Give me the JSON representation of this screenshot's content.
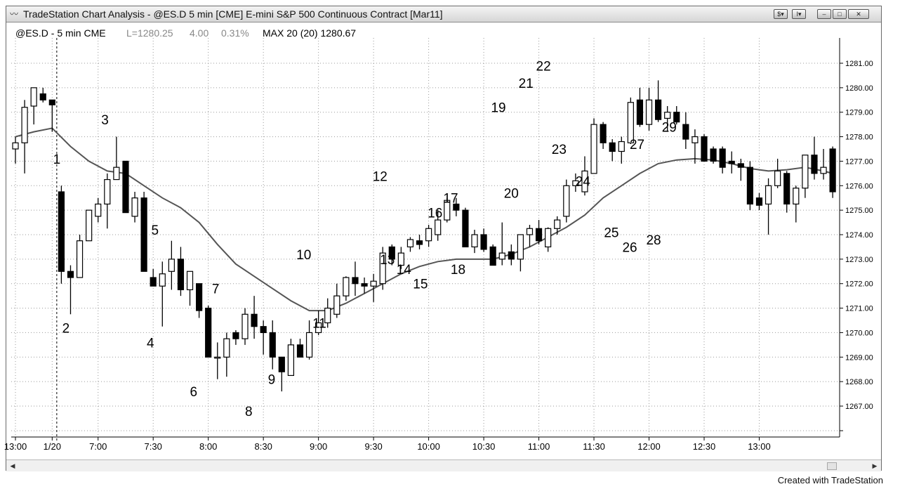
{
  "window": {
    "title": "TradeStation Chart Analysis - @ES.D 5 min [CME] E-mini S&P 500 Continuous Contract [Mar11]",
    "buttons": [
      "$▾",
      "I▾",
      "–",
      "□",
      "✕"
    ]
  },
  "header": {
    "symbol": "@ES.D - 5 min CME",
    "last": "L=1280.25",
    "change": "4.00",
    "change_pct": "0.31%",
    "indicator": "MAX 20 (20) 1280.67"
  },
  "credit": "Created with TradeStation",
  "colors": {
    "bull_fill": "#ffffff",
    "bear_fill": "#000000",
    "ma_line": "#555555",
    "grid": "#9a9a9a"
  },
  "chart_data": {
    "type": "candlestick",
    "title": "@ES.D - 5 min CME",
    "ylim": [
      1266,
      1282.2
    ],
    "y_ticks": [
      "1281.00",
      "1280.00",
      "1279.00",
      "1278.00",
      "1277.00",
      "1276.00",
      "1275.00",
      "1274.00",
      "1273.00",
      "1272.00",
      "1271.00",
      "1270.00",
      "1269.00",
      "1268.00",
      "1267.00"
    ],
    "x_ticks": [
      {
        "label": "13:00",
        "bar": 0
      },
      {
        "label": "1/20",
        "bar": 4
      },
      {
        "label": "7:00",
        "bar": 9
      },
      {
        "label": "7:30",
        "bar": 15
      },
      {
        "label": "8:00",
        "bar": 21
      },
      {
        "label": "8:30",
        "bar": 27
      },
      {
        "label": "9:00",
        "bar": 33
      },
      {
        "label": "9:30",
        "bar": 39
      },
      {
        "label": "10:00",
        "bar": 45
      },
      {
        "label": "10:30",
        "bar": 51
      },
      {
        "label": "11:00",
        "bar": 57
      },
      {
        "label": "11:30",
        "bar": 63
      },
      {
        "label": "12:00",
        "bar": 69
      },
      {
        "label": "12:30",
        "bar": 75
      },
      {
        "label": "13:00",
        "bar": 81
      }
    ],
    "session_break_bar": 4.5,
    "ohlc": [
      [
        1277.5,
        1278.0,
        1276.9,
        1277.75
      ],
      [
        1277.75,
        1279.5,
        1276.5,
        1279.2
      ],
      [
        1279.25,
        1280.0,
        1278.5,
        1280.0
      ],
      [
        1279.75,
        1280.0,
        1279.4,
        1279.5
      ],
      [
        1279.5,
        1279.5,
        1278.2,
        1279.3
      ],
      [
        1275.75,
        1276.0,
        1272.0,
        1272.5
      ],
      [
        1272.5,
        1272.75,
        1270.75,
        1272.25
      ],
      [
        1272.25,
        1274.0,
        1272.25,
        1273.75
      ],
      [
        1273.75,
        1275.0,
        1273.75,
        1275.0
      ],
      [
        1274.75,
        1275.5,
        1274.5,
        1275.25
      ],
      [
        1275.25,
        1276.5,
        1274.25,
        1276.25
      ],
      [
        1276.25,
        1278.0,
        1276.25,
        1276.75
      ],
      [
        1277.0,
        1277.0,
        1275.0,
        1274.9
      ],
      [
        1274.75,
        1275.75,
        1274.5,
        1275.5
      ],
      [
        1275.5,
        1275.75,
        1272.5,
        1272.5
      ],
      [
        1272.25,
        1272.6,
        1272.0,
        1271.9
      ],
      [
        1271.9,
        1272.9,
        1270.25,
        1272.4
      ],
      [
        1272.5,
        1273.75,
        1271.75,
        1273.0
      ],
      [
        1273.0,
        1273.5,
        1271.5,
        1271.75
      ],
      [
        1271.75,
        1272.5,
        1271.1,
        1272.5
      ],
      [
        1272.0,
        1272.0,
        1270.6,
        1270.9
      ],
      [
        1271.0,
        1271.1,
        1269.0,
        1269.0
      ],
      [
        1269.0,
        1269.6,
        1268.1,
        1269.0
      ],
      [
        1269.0,
        1270.0,
        1268.2,
        1269.75
      ],
      [
        1270.0,
        1270.1,
        1269.5,
        1269.75
      ],
      [
        1269.75,
        1271.0,
        1269.5,
        1270.75
      ],
      [
        1270.75,
        1271.5,
        1269.75,
        1270.25
      ],
      [
        1270.25,
        1270.5,
        1269.1,
        1270.0
      ],
      [
        1270.0,
        1270.5,
        1268.5,
        1269.0
      ],
      [
        1269.0,
        1269.0,
        1267.6,
        1268.4
      ],
      [
        1268.25,
        1269.75,
        1268.25,
        1269.5
      ],
      [
        1269.5,
        1269.75,
        1269.0,
        1269.0
      ],
      [
        1269.0,
        1270.5,
        1268.9,
        1270.0
      ],
      [
        1270.0,
        1270.9,
        1269.9,
        1270.4
      ],
      [
        1270.4,
        1271.4,
        1270.2,
        1271.0
      ],
      [
        1270.75,
        1272.0,
        1270.6,
        1271.5
      ],
      [
        1271.5,
        1272.3,
        1271.3,
        1272.25
      ],
      [
        1272.25,
        1272.9,
        1271.5,
        1272.0
      ],
      [
        1272.0,
        1272.25,
        1271.6,
        1271.9
      ],
      [
        1271.9,
        1272.4,
        1271.25,
        1272.1
      ],
      [
        1272.0,
        1273.5,
        1271.75,
        1273.25
      ],
      [
        1273.5,
        1273.6,
        1272.75,
        1273.0
      ],
      [
        1272.75,
        1273.5,
        1272.6,
        1273.25
      ],
      [
        1273.5,
        1273.9,
        1273.3,
        1273.8
      ],
      [
        1273.75,
        1274.0,
        1273.4,
        1273.6
      ],
      [
        1273.75,
        1274.4,
        1273.5,
        1274.25
      ],
      [
        1274.0,
        1275.0,
        1273.75,
        1274.6
      ],
      [
        1274.6,
        1275.5,
        1274.5,
        1275.4
      ],
      [
        1275.25,
        1275.5,
        1274.75,
        1275.0
      ],
      [
        1275.0,
        1275.1,
        1273.6,
        1273.5
      ],
      [
        1273.5,
        1274.2,
        1273.25,
        1274.0
      ],
      [
        1274.0,
        1274.25,
        1273.3,
        1273.4
      ],
      [
        1273.5,
        1273.6,
        1272.9,
        1272.75
      ],
      [
        1273.0,
        1274.5,
        1272.75,
        1273.25
      ],
      [
        1273.3,
        1273.6,
        1272.75,
        1273.0
      ],
      [
        1273.0,
        1274.0,
        1272.5,
        1274.0
      ],
      [
        1274.0,
        1274.4,
        1273.5,
        1274.25
      ],
      [
        1274.25,
        1274.6,
        1273.6,
        1273.75
      ],
      [
        1273.5,
        1274.3,
        1273.3,
        1274.25
      ],
      [
        1274.25,
        1274.75,
        1274.0,
        1274.6
      ],
      [
        1274.75,
        1276.25,
        1274.5,
        1276.0
      ],
      [
        1276.0,
        1276.5,
        1275.75,
        1276.2
      ],
      [
        1275.75,
        1277.2,
        1275.6,
        1276.6
      ],
      [
        1276.5,
        1278.75,
        1276.5,
        1278.5
      ],
      [
        1278.5,
        1278.6,
        1277.5,
        1277.75
      ],
      [
        1277.75,
        1277.9,
        1277.0,
        1277.4
      ],
      [
        1277.4,
        1278.0,
        1276.9,
        1277.8
      ],
      [
        1277.75,
        1279.6,
        1277.7,
        1279.4
      ],
      [
        1279.5,
        1280.0,
        1278.4,
        1278.5
      ],
      [
        1278.5,
        1280.0,
        1278.25,
        1279.5
      ],
      [
        1279.5,
        1280.3,
        1278.6,
        1278.7
      ],
      [
        1278.75,
        1279.25,
        1278.2,
        1279.0
      ],
      [
        1279.0,
        1279.25,
        1278.5,
        1278.6
      ],
      [
        1278.5,
        1279.0,
        1277.5,
        1277.9
      ],
      [
        1277.75,
        1278.3,
        1276.9,
        1278.0
      ],
      [
        1278.0,
        1278.1,
        1277.1,
        1277.0
      ],
      [
        1277.5,
        1277.6,
        1276.9,
        1277.0
      ],
      [
        1277.5,
        1277.6,
        1276.5,
        1276.75
      ],
      [
        1277.0,
        1277.4,
        1276.5,
        1276.9
      ],
      [
        1276.9,
        1277.1,
        1276.2,
        1276.75
      ],
      [
        1276.75,
        1277.0,
        1275.0,
        1275.25
      ],
      [
        1275.5,
        1275.7,
        1275.0,
        1275.2
      ],
      [
        1275.25,
        1276.3,
        1274.0,
        1276.0
      ],
      [
        1276.0,
        1277.1,
        1275.9,
        1276.6
      ],
      [
        1276.5,
        1276.6,
        1274.9,
        1275.25
      ],
      [
        1275.25,
        1276.0,
        1274.5,
        1275.9
      ],
      [
        1275.9,
        1277.1,
        1275.5,
        1277.25
      ],
      [
        1277.25,
        1278.0,
        1276.25,
        1276.5
      ],
      [
        1276.5,
        1277.5,
        1276.25,
        1276.75
      ],
      [
        1277.5,
        1277.6,
        1275.5,
        1275.75
      ]
    ],
    "ma_points": [
      [
        0,
        1278.0
      ],
      [
        2,
        1278.2
      ],
      [
        4,
        1278.35
      ],
      [
        6,
        1277.6
      ],
      [
        8,
        1277.0
      ],
      [
        10,
        1276.6
      ],
      [
        12,
        1276.5
      ],
      [
        14,
        1276.0
      ],
      [
        16,
        1275.5
      ],
      [
        18,
        1275.1
      ],
      [
        20,
        1274.5
      ],
      [
        22,
        1273.6
      ],
      [
        24,
        1272.8
      ],
      [
        26,
        1272.3
      ],
      [
        28,
        1271.8
      ],
      [
        30,
        1271.3
      ],
      [
        32,
        1270.9
      ],
      [
        34,
        1270.9
      ],
      [
        36,
        1271.2
      ],
      [
        38,
        1271.6
      ],
      [
        40,
        1272.0
      ],
      [
        42,
        1272.4
      ],
      [
        44,
        1272.7
      ],
      [
        46,
        1272.9
      ],
      [
        48,
        1273.0
      ],
      [
        50,
        1273.0
      ],
      [
        52,
        1273.0
      ],
      [
        54,
        1273.2
      ],
      [
        56,
        1273.5
      ],
      [
        58,
        1273.9
      ],
      [
        60,
        1274.3
      ],
      [
        62,
        1274.8
      ],
      [
        64,
        1275.5
      ],
      [
        66,
        1276.0
      ],
      [
        68,
        1276.5
      ],
      [
        70,
        1276.9
      ],
      [
        72,
        1277.05
      ],
      [
        74,
        1277.1
      ],
      [
        76,
        1277.05
      ],
      [
        78,
        1276.9
      ],
      [
        80,
        1276.7
      ],
      [
        82,
        1276.6
      ],
      [
        84,
        1276.65
      ],
      [
        86,
        1276.75
      ],
      [
        88,
        1276.6
      ],
      [
        89,
        1276.5
      ]
    ],
    "annotations": [
      {
        "label": "1",
        "bar": 4.5,
        "price": 1277.1
      },
      {
        "label": "2",
        "bar": 5.5,
        "price": 1270.2
      },
      {
        "label": "3",
        "bar": 9.75,
        "price": 1278.7
      },
      {
        "label": "4",
        "bar": 14.7,
        "price": 1269.6
      },
      {
        "label": "5",
        "bar": 15.2,
        "price": 1274.2
      },
      {
        "label": "6",
        "bar": 19.4,
        "price": 1267.6
      },
      {
        "label": "7",
        "bar": 21.8,
        "price": 1271.8
      },
      {
        "label": "8",
        "bar": 25.4,
        "price": 1266.8
      },
      {
        "label": "9",
        "bar": 27.9,
        "price": 1268.1
      },
      {
        "label": "10",
        "bar": 31.4,
        "price": 1273.2
      },
      {
        "label": "11",
        "bar": 33.1,
        "price": 1270.4
      },
      {
        "label": "12",
        "bar": 39.7,
        "price": 1276.4
      },
      {
        "label": "13",
        "bar": 40.5,
        "price": 1273.0
      },
      {
        "label": "14",
        "bar": 42.3,
        "price": 1272.6
      },
      {
        "label": "15",
        "bar": 44.1,
        "price": 1272.0
      },
      {
        "label": "16",
        "bar": 45.7,
        "price": 1274.9
      },
      {
        "label": "17",
        "bar": 47.4,
        "price": 1275.5
      },
      {
        "label": "18",
        "bar": 48.2,
        "price": 1272.6
      },
      {
        "label": "19",
        "bar": 52.6,
        "price": 1279.2
      },
      {
        "label": "20",
        "bar": 54.0,
        "price": 1275.7
      },
      {
        "label": "21",
        "bar": 55.6,
        "price": 1280.2
      },
      {
        "label": "22",
        "bar": 57.5,
        "price": 1280.9
      },
      {
        "label": "23",
        "bar": 59.2,
        "price": 1277.5
      },
      {
        "label": "24",
        "bar": 61.8,
        "price": 1276.2
      },
      {
        "label": "25",
        "bar": 64.9,
        "price": 1274.1
      },
      {
        "label": "26",
        "bar": 66.9,
        "price": 1273.5
      },
      {
        "label": "27",
        "bar": 67.7,
        "price": 1277.7
      },
      {
        "label": "28",
        "bar": 69.5,
        "price": 1273.8
      },
      {
        "label": "29",
        "bar": 71.2,
        "price": 1278.4
      }
    ]
  }
}
